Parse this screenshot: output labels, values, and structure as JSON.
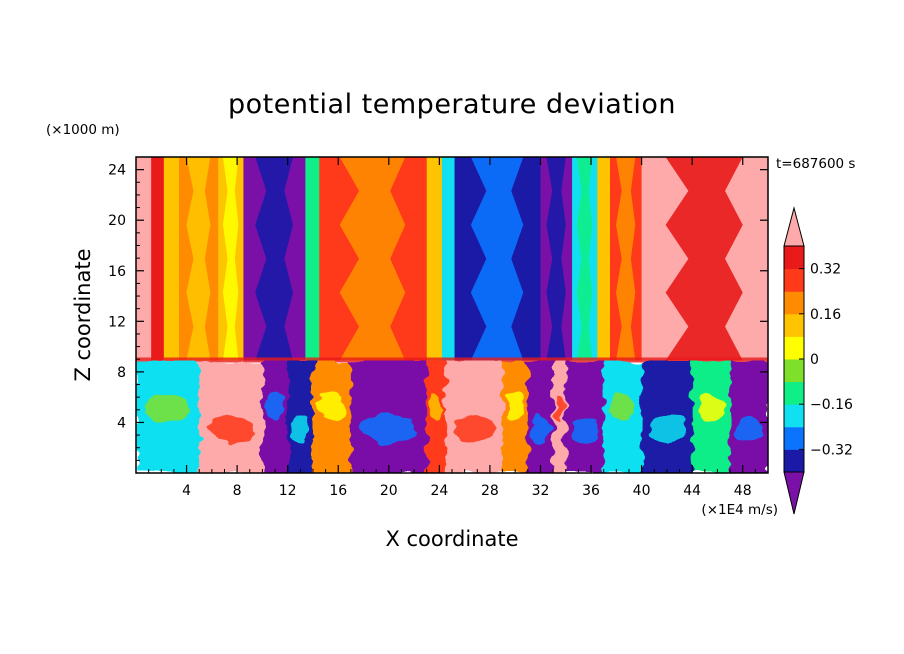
{
  "chart_data": {
    "type": "heatmap",
    "title": "potential temperature deviation",
    "xlabel": "X coordinate",
    "ylabel": "Z coordinate",
    "x_unit": "(×1E4 m/s)",
    "y_unit": "(×1000 m)",
    "time_label": "t=687600 s",
    "xlim": [
      0,
      50
    ],
    "ylim": [
      0,
      25
    ],
    "x_ticks": [
      4,
      8,
      12,
      16,
      20,
      24,
      28,
      32,
      36,
      40,
      44,
      48
    ],
    "y_ticks": [
      4,
      8,
      12,
      16,
      20,
      24
    ],
    "colorbar": {
      "levels": [
        -0.4,
        -0.32,
        -0.24,
        -0.16,
        -0.08,
        0,
        0.08,
        0.16,
        0.24,
        0.32,
        0.4
      ],
      "tick_labels": [
        "0.32",
        "0.16",
        "0",
        "−0.16",
        "−0.32"
      ],
      "tick_values": [
        0.32,
        0.16,
        0,
        -0.16,
        -0.32
      ],
      "extend": "both",
      "colors": [
        "#7a10a8",
        "#1a1aa6",
        "#0b74ff",
        "#10e0f0",
        "#10ee88",
        "#7ee02a",
        "#ffff00",
        "#ffc400",
        "#ff8c00",
        "#ff3a1a",
        "#e81a1a",
        "#ffaaaa"
      ]
    },
    "upper_layer_columns": [
      {
        "x": [
          0,
          1.2
        ],
        "value": 0.44
      },
      {
        "x": [
          1.2,
          2.2
        ],
        "value": 0.36
      },
      {
        "x": [
          2.2,
          3.4
        ],
        "value": 0.12
      },
      {
        "x": [
          3.4,
          6.5
        ],
        "value": 0.2
      },
      {
        "x": [
          6.5,
          8.5
        ],
        "value": 0.12
      },
      {
        "x": [
          8.5,
          13.4
        ],
        "value": -0.44
      },
      {
        "x": [
          13.4,
          14.5
        ],
        "value": -0.12
      },
      {
        "x": [
          14.5,
          23.0
        ],
        "value": 0.28
      },
      {
        "x": [
          23.0,
          24.2
        ],
        "value": 0.08
      },
      {
        "x": [
          24.2,
          25.2
        ],
        "value": -0.2
      },
      {
        "x": [
          25.2,
          32.0
        ],
        "value": -0.36
      },
      {
        "x": [
          32.0,
          34.5
        ],
        "value": -0.44
      },
      {
        "x": [
          34.5,
          36.5
        ],
        "value": -0.2
      },
      {
        "x": [
          36.5,
          37.5
        ],
        "value": 0.1
      },
      {
        "x": [
          37.5,
          40.0
        ],
        "value": 0.3
      },
      {
        "x": [
          40.0,
          50.0
        ],
        "value": 0.44
      }
    ],
    "lower_layer_note_x": [
      0,
      50
    ],
    "layer_interface_z": 8.9
  }
}
